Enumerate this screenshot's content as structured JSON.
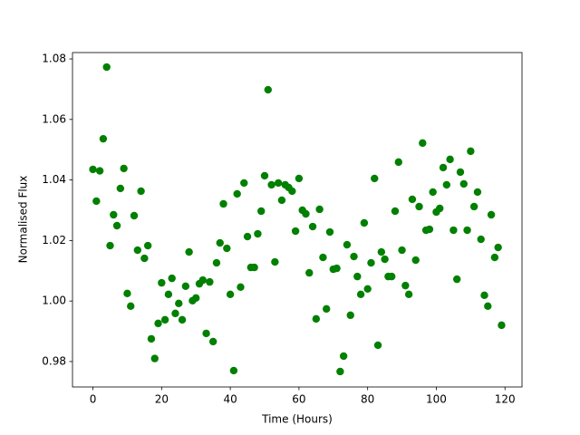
{
  "chart_data": {
    "type": "scatter",
    "xlabel": "Time (Hours)",
    "ylabel": "Normalised Flux",
    "color": "#008000",
    "x": [
      0,
      1,
      2,
      3,
      4,
      5,
      6,
      7,
      8,
      9,
      10,
      11,
      12,
      13,
      14,
      15,
      16,
      17,
      18,
      19,
      20,
      21,
      22,
      23,
      24,
      25,
      26,
      27,
      28,
      29,
      30,
      31,
      32,
      33,
      34,
      35,
      36,
      37,
      38,
      39,
      40,
      41,
      42,
      43,
      44,
      45,
      46,
      47,
      48,
      49,
      50,
      51,
      52,
      53,
      54,
      55,
      56,
      57,
      58,
      59,
      60,
      61,
      62,
      63,
      64,
      65,
      66,
      67,
      68,
      69,
      70,
      71,
      72,
      73,
      74,
      75,
      76,
      77,
      78,
      79,
      80,
      81,
      82,
      83,
      84,
      85,
      86,
      87,
      88,
      89,
      90,
      91,
      92,
      93,
      94,
      95,
      96,
      97,
      98,
      99,
      100,
      101,
      102,
      103,
      104,
      105,
      106,
      107,
      108,
      109,
      110,
      111,
      112,
      113,
      114,
      115,
      116,
      117,
      118,
      119
    ],
    "values": [
      1.0435,
      1.033,
      1.043,
      1.0536,
      1.0773,
      1.0183,
      1.0285,
      1.0249,
      1.0372,
      1.0438,
      1.0025,
      0.9983,
      1.0282,
      1.0168,
      1.0363,
      1.0141,
      1.0183,
      0.9875,
      0.981,
      0.9926,
      1.006,
      0.9938,
      1.0022,
      1.0075,
      0.9959,
      0.9992,
      0.9938,
      1.0049,
      1.0162,
      1.0001,
      1.001,
      1.0057,
      1.0069,
      0.9893,
      1.0063,
      0.9866,
      1.0126,
      1.0192,
      1.0321,
      1.0174,
      1.0022,
      0.977,
      1.0354,
      1.0046,
      1.039,
      1.0213,
      1.0111,
      1.0111,
      1.0222,
      1.0297,
      1.0414,
      1.0698,
      1.0384,
      1.0129,
      1.039,
      1.0333,
      1.0384,
      1.0375,
      1.0363,
      1.0231,
      1.0405,
      1.03,
      1.0288,
      1.0093,
      1.0246,
      0.9941,
      1.0303,
      1.0144,
      0.9974,
      1.0228,
      1.0105,
      1.0108,
      0.9767,
      0.9818,
      1.0186,
      0.9953,
      1.0147,
      1.0081,
      1.0022,
      1.0258,
      1.004,
      1.0126,
      1.0405,
      0.9854,
      1.0162,
      1.0138,
      1.0081,
      1.0081,
      1.0297,
      1.0459,
      1.0168,
      1.0051,
      1.0022,
      1.0336,
      1.0135,
      1.0312,
      1.0522,
      1.0234,
      1.0237,
      1.036,
      1.0294,
      1.0306,
      1.0441,
      1.0384,
      1.0468,
      1.0234,
      1.0072,
      1.0426,
      1.0387,
      1.0234,
      1.0495,
      1.0312,
      1.036,
      1.0204,
      1.0019,
      0.9983,
      1.0285,
      1.0144,
      1.0177,
      0.992
    ],
    "xlim": [
      -5.95,
      124.95
    ],
    "xticks": [
      0,
      20,
      40,
      60,
      80,
      100,
      120
    ],
    "ylim": [
      0.9716,
      1.0821
    ],
    "yticks": [
      {
        "value": 0.98,
        "label": "0.98"
      },
      {
        "value": 1.0,
        "label": "1.00"
      },
      {
        "value": 1.02,
        "label": "1.02"
      },
      {
        "value": 1.04,
        "label": "1.04"
      },
      {
        "value": 1.06,
        "label": "1.06"
      },
      {
        "value": 1.08,
        "label": "1.08"
      }
    ],
    "grid": false
  }
}
